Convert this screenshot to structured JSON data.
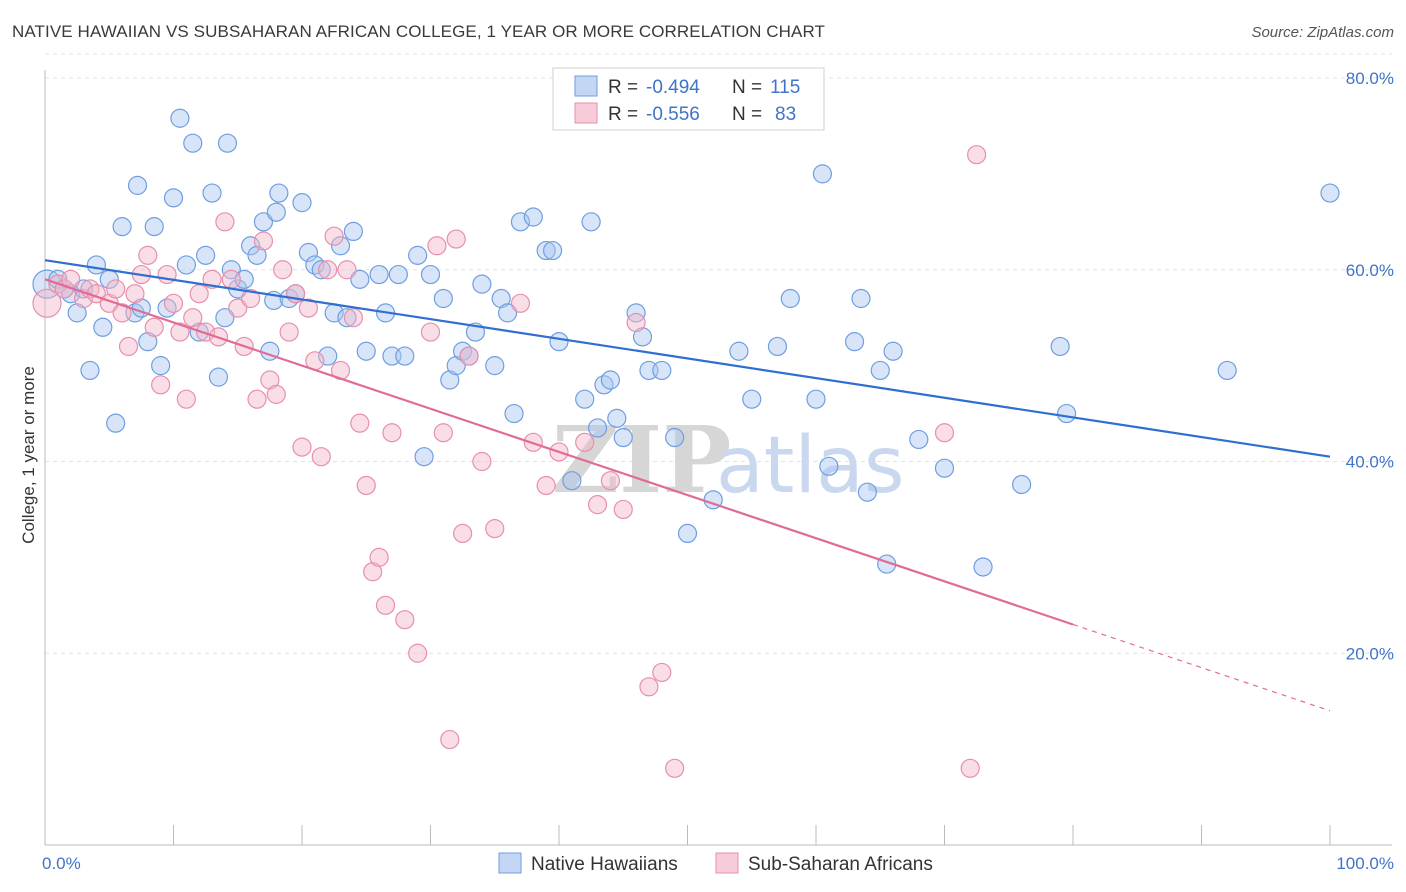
{
  "title": "NATIVE HAWAIIAN VS SUBSAHARAN AFRICAN COLLEGE, 1 YEAR OR MORE CORRELATION CHART",
  "source": "Source: ZipAtlas.com",
  "watermark": {
    "zip": "ZIP",
    "atlas": "atlas"
  },
  "colors": {
    "blue_fill": "#a9c6ef",
    "blue_stroke": "#6f9ee0",
    "blue_line": "#2f6fcf",
    "pink_fill": "#f4b6c9",
    "pink_stroke": "#e78fab",
    "pink_line": "#e06c96",
    "tick_label": "#3f74c9",
    "grid": "#e3e3e3"
  },
  "legend": {
    "rows": [
      {
        "r_label": "R =",
        "r_value": "-0.494",
        "n_label": "N =",
        "n_value": "115"
      },
      {
        "r_label": "R =",
        "r_value": "-0.556",
        "n_label": "N =",
        "n_value": "83"
      }
    ]
  },
  "bottom_legend": [
    "Native Hawaiians",
    "Sub-Saharan Africans"
  ],
  "chart_data": {
    "type": "scatter",
    "title": "NATIVE HAWAIIAN VS SUBSAHARAN AFRICAN COLLEGE, 1 YEAR OR MORE CORRELATION CHART",
    "xlabel": "",
    "ylabel": "College, 1 year or more",
    "xlim": [
      0,
      100
    ],
    "ylim": [
      0,
      83
    ],
    "x_tick_labels": [
      "0.0%",
      "100.0%"
    ],
    "y_ticks": [
      20,
      40,
      60,
      80
    ],
    "y_tick_labels": [
      "20.0%",
      "40.0%",
      "60.0%",
      "80.0%"
    ],
    "grid": true,
    "legend_position": "top-center",
    "series": [
      {
        "name": "Native Hawaiians",
        "R": -0.494,
        "N": 115,
        "trend": {
          "x": [
            0,
            100
          ],
          "y": [
            61.0,
            40.5
          ],
          "extrapolated_to": 100
        },
        "points": [
          [
            0,
            58.5
          ],
          [
            1,
            59
          ],
          [
            1.5,
            58
          ],
          [
            2,
            57.5
          ],
          [
            2.5,
            55.5
          ],
          [
            3,
            58
          ],
          [
            3.5,
            49.5
          ],
          [
            4,
            60.5
          ],
          [
            4.5,
            54
          ],
          [
            5,
            59
          ],
          [
            5.5,
            44
          ],
          [
            6,
            64.5
          ],
          [
            7,
            55.5
          ],
          [
            7.2,
            68.8
          ],
          [
            7.5,
            56
          ],
          [
            8,
            52.5
          ],
          [
            8.5,
            64.5
          ],
          [
            9,
            50
          ],
          [
            9.5,
            56
          ],
          [
            10,
            67.5
          ],
          [
            10.5,
            75.8
          ],
          [
            11,
            60.5
          ],
          [
            11.5,
            73.2
          ],
          [
            12,
            53.5
          ],
          [
            12.5,
            61.5
          ],
          [
            13,
            68
          ],
          [
            13.5,
            48.8
          ],
          [
            14,
            55
          ],
          [
            14.2,
            73.2
          ],
          [
            14.5,
            60
          ],
          [
            15,
            58
          ],
          [
            15.5,
            59
          ],
          [
            16,
            62.5
          ],
          [
            16.5,
            61.5
          ],
          [
            17,
            65
          ],
          [
            17.5,
            51.5
          ],
          [
            17.8,
            56.8
          ],
          [
            18,
            66
          ],
          [
            18.2,
            68
          ],
          [
            19,
            57
          ],
          [
            19.5,
            57.5
          ],
          [
            20,
            67
          ],
          [
            20.5,
            61.8
          ],
          [
            21,
            60.5
          ],
          [
            21.5,
            60
          ],
          [
            22,
            51
          ],
          [
            22.5,
            55.5
          ],
          [
            23,
            62.5
          ],
          [
            23.5,
            55
          ],
          [
            24,
            64
          ],
          [
            24.5,
            59
          ],
          [
            25,
            51.5
          ],
          [
            26,
            59.5
          ],
          [
            26.5,
            55.5
          ],
          [
            27,
            51
          ],
          [
            27.5,
            59.5
          ],
          [
            28,
            51
          ],
          [
            29,
            61.5
          ],
          [
            29.5,
            40.5
          ],
          [
            30,
            59.5
          ],
          [
            31,
            57
          ],
          [
            31.5,
            48.5
          ],
          [
            32,
            50
          ],
          [
            32.5,
            51.5
          ],
          [
            33,
            51
          ],
          [
            33.5,
            53.5
          ],
          [
            34,
            58.5
          ],
          [
            35,
            50
          ],
          [
            35.5,
            57
          ],
          [
            36,
            55.5
          ],
          [
            36.5,
            45
          ],
          [
            37,
            65
          ],
          [
            38,
            65.5
          ],
          [
            39,
            62
          ],
          [
            39.5,
            62
          ],
          [
            40,
            52.5
          ],
          [
            41,
            38
          ],
          [
            42,
            46.5
          ],
          [
            42.5,
            65
          ],
          [
            43,
            43.5
          ],
          [
            43.5,
            48
          ],
          [
            44,
            48.5
          ],
          [
            44.5,
            44.5
          ],
          [
            45,
            42.5
          ],
          [
            46,
            55.5
          ],
          [
            46.5,
            53
          ],
          [
            47,
            49.5
          ],
          [
            48,
            49.5
          ],
          [
            49,
            42.5
          ],
          [
            50,
            32.5
          ],
          [
            52,
            36
          ],
          [
            54,
            51.5
          ],
          [
            55,
            46.5
          ],
          [
            57,
            52
          ],
          [
            58,
            57
          ],
          [
            60,
            46.5
          ],
          [
            60.5,
            70
          ],
          [
            61,
            39.5
          ],
          [
            63,
            52.5
          ],
          [
            63.5,
            57
          ],
          [
            64,
            36.8
          ],
          [
            65,
            49.5
          ],
          [
            65.5,
            29.3
          ],
          [
            66,
            51.5
          ],
          [
            68,
            42.3
          ],
          [
            70,
            39.3
          ],
          [
            73,
            29
          ],
          [
            76,
            37.6
          ],
          [
            79,
            52
          ],
          [
            79.5,
            45
          ],
          [
            92,
            49.5
          ],
          [
            100,
            68
          ]
        ]
      },
      {
        "name": "Sub-Saharan Africans",
        "R": -0.556,
        "N": 83,
        "trend": {
          "x": [
            0,
            80
          ],
          "y": [
            59.0,
            23.0
          ],
          "extrapolated_to": 100
        },
        "points": [
          [
            0,
            56.5
          ],
          [
            1,
            58.5
          ],
          [
            1.5,
            58
          ],
          [
            2,
            59
          ],
          [
            3,
            57
          ],
          [
            3.5,
            58
          ],
          [
            4,
            57.5
          ],
          [
            5,
            56.5
          ],
          [
            5.5,
            58
          ],
          [
            6,
            55.5
          ],
          [
            6.5,
            52
          ],
          [
            7,
            57.5
          ],
          [
            7.5,
            59.5
          ],
          [
            8,
            61.5
          ],
          [
            8.5,
            54
          ],
          [
            9,
            48
          ],
          [
            9.5,
            59.5
          ],
          [
            10,
            56.5
          ],
          [
            10.5,
            53.5
          ],
          [
            11,
            46.5
          ],
          [
            11.5,
            55
          ],
          [
            12,
            57.5
          ],
          [
            12.5,
            53.5
          ],
          [
            13,
            59
          ],
          [
            13.5,
            53
          ],
          [
            14,
            65
          ],
          [
            14.5,
            59
          ],
          [
            15,
            56
          ],
          [
            15.5,
            52
          ],
          [
            16,
            57
          ],
          [
            16.5,
            46.5
          ],
          [
            17,
            63
          ],
          [
            17.5,
            48.5
          ],
          [
            18,
            47
          ],
          [
            18.5,
            60
          ],
          [
            19,
            53.5
          ],
          [
            19.5,
            57.5
          ],
          [
            20,
            41.5
          ],
          [
            20.5,
            56
          ],
          [
            21,
            50.5
          ],
          [
            21.5,
            40.5
          ],
          [
            22,
            60
          ],
          [
            22.5,
            63.5
          ],
          [
            23,
            49.5
          ],
          [
            23.5,
            60
          ],
          [
            24,
            55
          ],
          [
            24.5,
            44
          ],
          [
            25,
            37.5
          ],
          [
            25.5,
            28.5
          ],
          [
            26,
            30
          ],
          [
            26.5,
            25
          ],
          [
            27,
            43
          ],
          [
            28,
            23.5
          ],
          [
            29,
            20
          ],
          [
            30,
            53.5
          ],
          [
            30.5,
            62.5
          ],
          [
            31,
            43
          ],
          [
            31.5,
            11
          ],
          [
            32,
            63.2
          ],
          [
            32.5,
            32.5
          ],
          [
            33,
            51
          ],
          [
            34,
            40
          ],
          [
            35,
            33
          ],
          [
            37,
            56.5
          ],
          [
            38,
            42
          ],
          [
            39,
            37.5
          ],
          [
            40,
            41
          ],
          [
            42,
            42
          ],
          [
            43,
            35.5
          ],
          [
            44,
            38
          ],
          [
            45,
            35
          ],
          [
            46,
            54.5
          ],
          [
            47,
            16.5
          ],
          [
            48,
            18
          ],
          [
            49,
            8
          ],
          [
            70,
            43
          ],
          [
            72,
            8
          ],
          [
            72.5,
            72
          ]
        ]
      }
    ]
  }
}
